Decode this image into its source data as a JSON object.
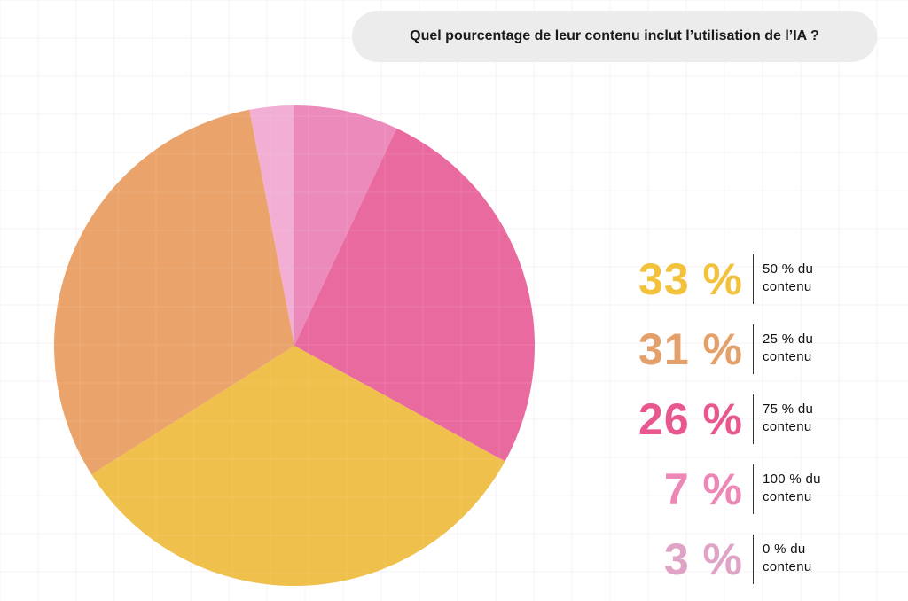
{
  "question": "Quel pourcentage de leur contenu inclut l’utilisation de l’IA ?",
  "chart_data": {
    "type": "pie",
    "title": "Quel pourcentage de leur contenu inclut l’utilisation de l’IA ?",
    "slices": [
      {
        "label": "100 % du contenu",
        "value": 7,
        "display": "7 %",
        "color": "#ec8bbb"
      },
      {
        "label": "75 % du contenu",
        "value": 26,
        "display": "26 %",
        "color": "#e96a9f"
      },
      {
        "label": "50 % du contenu",
        "value": 33,
        "display": "33 %",
        "color": "#efc04b"
      },
      {
        "label": "25 % du contenu",
        "value": 31,
        "display": "31 %",
        "color": "#eaa46b"
      },
      {
        "label": "0 % du contenu",
        "value": 3,
        "display": "3 %",
        "color": "#f2aed3"
      }
    ],
    "legend": [
      {
        "pct": "33 %",
        "line1": "50 % du",
        "line2": "contenu",
        "color": "#f3c23c"
      },
      {
        "pct": "31 %",
        "line1": "25 % du",
        "line2": "contenu",
        "color": "#e3a06a"
      },
      {
        "pct": "26 %",
        "line1": "75 % du",
        "line2": "contenu",
        "color": "#e8588f"
      },
      {
        "pct": "7 %",
        "line1": "100 % du",
        "line2": "contenu",
        "color": "#ec87b6"
      },
      {
        "pct": "3 %",
        "line1": "0 % du",
        "line2": "contenu",
        "color": "#dfa3c6"
      }
    ],
    "legend_position": "right"
  }
}
